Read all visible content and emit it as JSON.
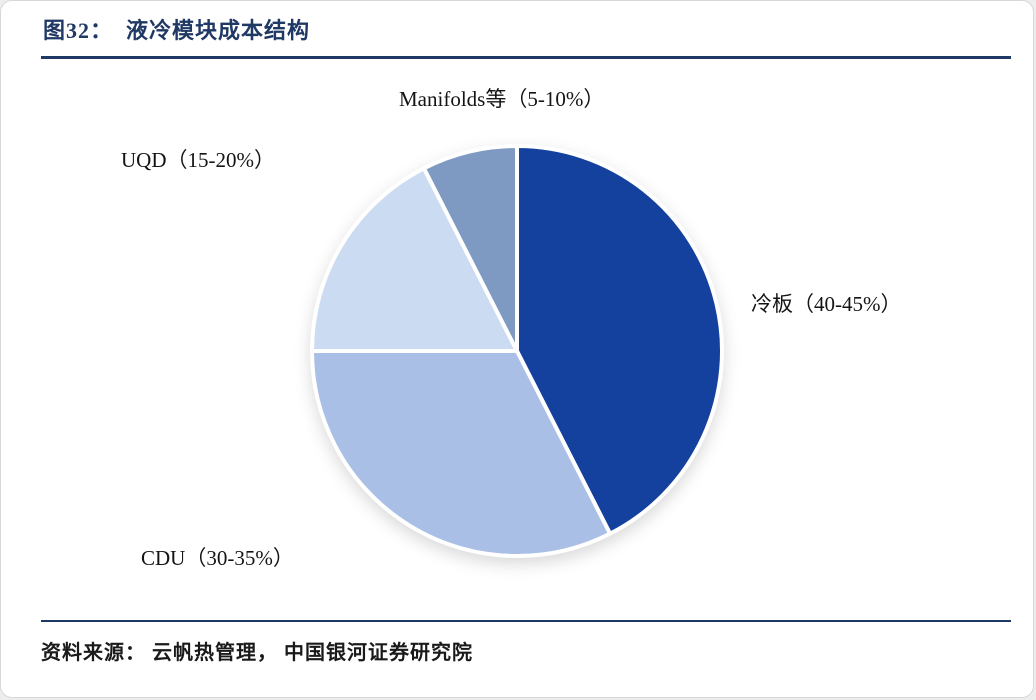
{
  "figure": {
    "title": "图32：  液冷模块成本结构",
    "source": "资料来源：  云帆热管理，  中国银河证券研究院"
  },
  "colors": {
    "title_text": "#1f3864",
    "divider_rule": "#1f3864",
    "label_text": "#141414",
    "slice_gap": "#ffffff"
  },
  "chart_data": {
    "type": "pie",
    "title": "图32： 液冷模块成本结构",
    "legend": "none",
    "labels_position": "outside",
    "start_angle_deg": 0,
    "direction": "clockwise",
    "slices": [
      {
        "name": "lengban",
        "label": "冷板（40-45%）",
        "range": "40-45%",
        "value": 42.5,
        "color": "#14419E"
      },
      {
        "name": "cdu",
        "label": "CDU（30-35%）",
        "range": "30-35%",
        "value": 32.5,
        "color": "#A9BFE6"
      },
      {
        "name": "uqd",
        "label": "UQD（15-20%）",
        "range": "15-20%",
        "value": 17.5,
        "color": "#CBDCF2"
      },
      {
        "name": "manifolds",
        "label": "Manifolds等（5-10%）",
        "range": "5-10%",
        "value": 7.5,
        "color": "#7E99C2"
      }
    ]
  }
}
